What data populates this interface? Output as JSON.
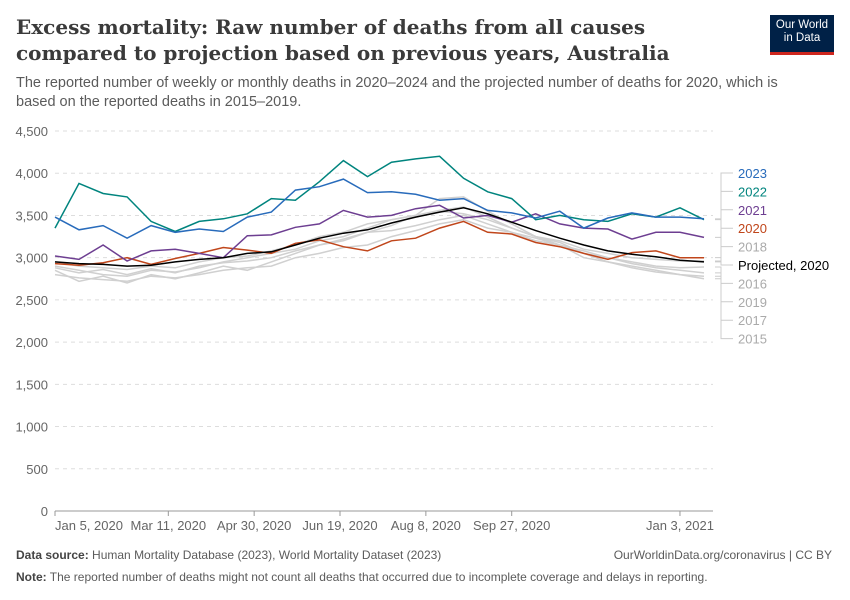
{
  "header": {
    "title": "Excess mortality: Raw number of deaths from all causes compared to projection based on previous years, Australia",
    "subtitle": "The reported number of weekly or monthly deaths in 2020–2024 and the projected number of deaths for 2020, which is based on the reported deaths in 2015–2019.",
    "logo": "Our World in Data"
  },
  "footer": {
    "source_label": "Data source:",
    "source": "Human Mortality Database (2023), World Mortality Dataset (2023)",
    "link": "OurWorldinData.org/coronavirus | CC BY",
    "note_label": "Note:",
    "note": "The reported number of deaths might not count all deaths that occurred due to incomplete coverage and delays in reporting."
  },
  "chart_data": {
    "type": "line",
    "title": "",
    "xlabel": "",
    "ylabel": "",
    "ylim": [
      0,
      4500
    ],
    "grid": "horizontal dashed",
    "legend": "right end labels",
    "yticks": [
      "0",
      "500",
      "1,000",
      "1,500",
      "2,000",
      "2,500",
      "3,000",
      "3,500",
      "4,000",
      "4,500"
    ],
    "xticks": [
      "Jan 5, 2020",
      "Mar 11, 2020",
      "Apr 30, 2020",
      "Jun 19, 2020",
      "Aug 8, 2020",
      "Sep 27, 2020",
      "Jan 3, 2021"
    ],
    "x": [
      "2020-01-05",
      "2020-01-19",
      "2020-02-02",
      "2020-02-16",
      "2020-03-01",
      "2020-03-15",
      "2020-03-29",
      "2020-04-12",
      "2020-04-26",
      "2020-05-10",
      "2020-05-24",
      "2020-06-07",
      "2020-06-21",
      "2020-07-05",
      "2020-07-19",
      "2020-08-02",
      "2020-08-16",
      "2020-08-30",
      "2020-09-13",
      "2020-09-27",
      "2020-10-11",
      "2020-10-25",
      "2020-11-08",
      "2020-11-22",
      "2020-12-06",
      "2020-12-20",
      "2021-01-03",
      "2021-01-17"
    ],
    "series": [
      {
        "name": "2015",
        "color": "#d0d0d0",
        "values": [
          2800,
          2760,
          2740,
          2720,
          2780,
          2760,
          2800,
          2850,
          2880,
          2900,
          3000,
          3050,
          3120,
          3150,
          3250,
          3320,
          3400,
          3450,
          3350,
          3300,
          3200,
          3150,
          3050,
          2950,
          2900,
          2850,
          2800,
          2750
        ]
      },
      {
        "name": "2017",
        "color": "#d0d0d0",
        "values": [
          2850,
          2720,
          2780,
          2700,
          2800,
          2750,
          2820,
          2900,
          2850,
          2950,
          3050,
          3150,
          3200,
          3300,
          3380,
          3500,
          3700,
          3720,
          3550,
          3400,
          3250,
          3150,
          3000,
          2950,
          2880,
          2830,
          2800,
          2780
        ]
      },
      {
        "name": "2019",
        "color": "#d0d0d0",
        "values": [
          2900,
          2850,
          2800,
          2780,
          2850,
          2830,
          2880,
          2950,
          3000,
          3050,
          3100,
          3200,
          3250,
          3350,
          3450,
          3500,
          3560,
          3600,
          3480,
          3350,
          3250,
          3180,
          3050,
          3000,
          2930,
          2880,
          2850,
          2820
        ]
      },
      {
        "name": "2016",
        "color": "#d0d0d0",
        "values": [
          2880,
          2820,
          2860,
          2800,
          2870,
          2820,
          2900,
          2940,
          2960,
          3000,
          3080,
          3150,
          3220,
          3300,
          3320,
          3380,
          3450,
          3500,
          3400,
          3300,
          3230,
          3150,
          3080,
          3000,
          2950,
          2900,
          2880,
          2890
        ]
      },
      {
        "name": "2018",
        "color": "#d0d0d0",
        "values": [
          2950,
          2900,
          2880,
          2860,
          2900,
          2880,
          2950,
          3000,
          3020,
          3080,
          3150,
          3250,
          3300,
          3400,
          3450,
          3500,
          3550,
          3520,
          3450,
          3350,
          3250,
          3200,
          3100,
          3050,
          3000,
          2980,
          2960,
          2960
        ]
      },
      {
        "name": "2020",
        "color": "#c0461b",
        "values": [
          2930,
          2910,
          2940,
          3000,
          2920,
          2990,
          3050,
          3120,
          3090,
          3050,
          3170,
          3210,
          3130,
          3080,
          3200,
          3230,
          3350,
          3430,
          3300,
          3280,
          3180,
          3130,
          3050,
          2980,
          3060,
          3080,
          3000,
          3000
        ]
      },
      {
        "name": "2021",
        "color": "#6d3e91",
        "values": [
          3020,
          2980,
          3150,
          2960,
          3080,
          3100,
          3050,
          3000,
          3260,
          3270,
          3360,
          3400,
          3560,
          3480,
          3500,
          3580,
          3620,
          3470,
          3500,
          3420,
          3520,
          3400,
          3350,
          3340,
          3220,
          3300,
          3300,
          3240
        ]
      },
      {
        "name": "2022",
        "color": "#00847e",
        "values": [
          3350,
          3880,
          3760,
          3720,
          3430,
          3310,
          3430,
          3460,
          3520,
          3700,
          3680,
          3900,
          4150,
          3960,
          4130,
          4170,
          4200,
          3940,
          3780,
          3700,
          3450,
          3500,
          3450,
          3430,
          3520,
          3480,
          3590,
          3450
        ]
      },
      {
        "name": "2023",
        "color": "#286bbb",
        "values": [
          3480,
          3330,
          3380,
          3230,
          3380,
          3300,
          3340,
          3310,
          3480,
          3540,
          3800,
          3840,
          3930,
          3770,
          3780,
          3750,
          3680,
          3700,
          3560,
          3530,
          3470,
          3550,
          3350,
          3470,
          3530,
          3480,
          3480,
          3460
        ]
      },
      {
        "name": "Projected, 2020",
        "color": "#000000",
        "values": [
          2950,
          2930,
          2920,
          2900,
          2910,
          2950,
          2980,
          3000,
          3050,
          3070,
          3150,
          3230,
          3290,
          3330,
          3410,
          3480,
          3540,
          3590,
          3520,
          3420,
          3320,
          3230,
          3150,
          3080,
          3040,
          3010,
          2970,
          2950
        ]
      }
    ],
    "legend_order": [
      "2023",
      "2022",
      "2021",
      "2020",
      "2018",
      "Projected, 2020",
      "2016",
      "2019",
      "2017",
      "2015"
    ],
    "legend_colors": {
      "2023": "#286bbb",
      "2022": "#00847e",
      "2021": "#6d3e91",
      "2020": "#c0461b",
      "Projected, 2020": "#000000"
    }
  }
}
